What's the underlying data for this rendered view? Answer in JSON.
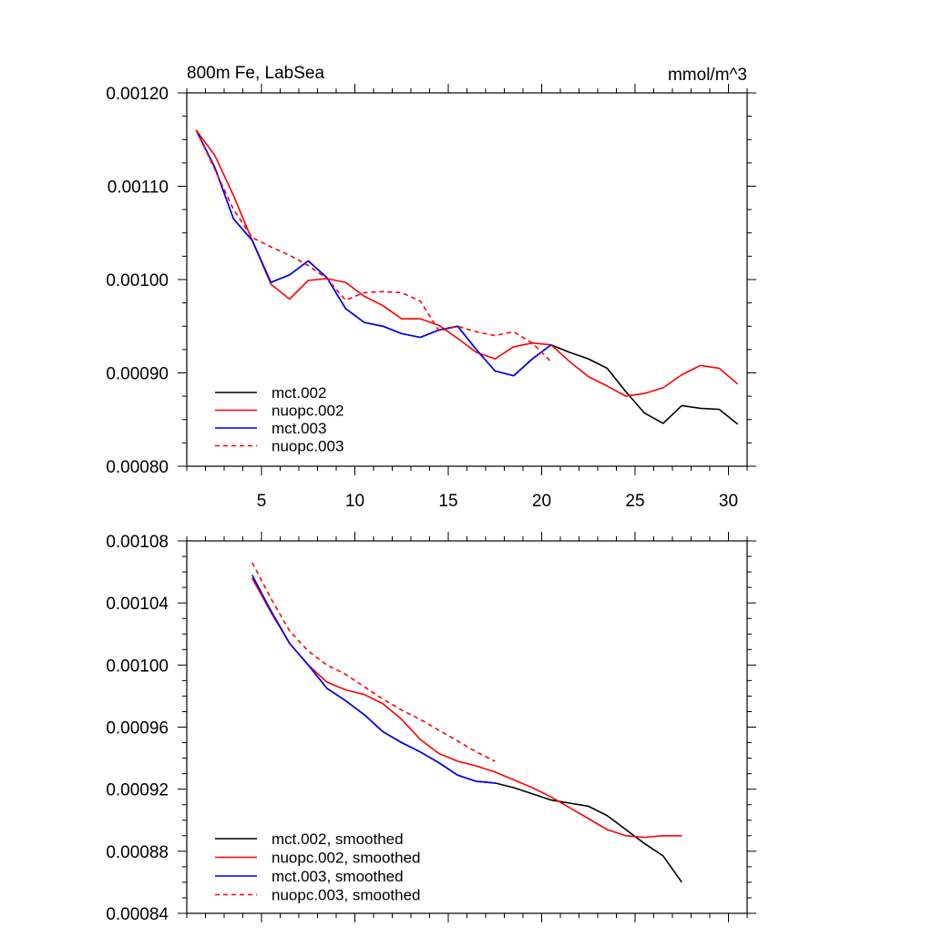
{
  "chart_data": [
    {
      "type": "line",
      "title": "800m Fe, LabSea",
      "units": "mmol/m^3",
      "xlabel": "",
      "ylabel": "",
      "xlim": [
        1,
        31
      ],
      "ylim": [
        0.0008,
        0.0012
      ],
      "xticks": [
        5,
        10,
        15,
        20,
        25,
        30
      ],
      "xtick_labels": [
        "5",
        "10",
        "15",
        "20",
        "25",
        "30"
      ],
      "yticks": [
        0.0008,
        0.0009,
        0.001,
        0.0011,
        0.0012
      ],
      "ytick_labels": [
        "0.00080",
        "0.00090",
        "0.00100",
        "0.00110",
        "0.00120"
      ],
      "legend_placement": "bottom-left",
      "series": [
        {
          "name": "mct.002",
          "color": "#000000",
          "dash": "solid",
          "x": [
            1.5,
            2.5,
            3.5,
            4.5,
            5.5,
            6.5,
            7.5,
            8.5,
            9.5,
            10.5,
            11.5,
            12.5,
            13.5,
            14.5,
            15.5,
            16.5,
            17.5,
            18.5,
            19.5,
            20.5,
            21.5,
            22.5,
            23.5,
            24.5,
            25.5,
            26.5,
            27.5,
            28.5,
            29.5,
            30.5
          ],
          "y": [
            0.00116,
            0.00112,
            0.001065,
            0.001042,
            0.000997,
            0.001005,
            0.00102,
            0.001002,
            0.000969,
            0.000954,
            0.00095,
            0.000942,
            0.000938,
            0.000946,
            0.00095,
            0.000925,
            0.000902,
            0.000897,
            0.000915,
            0.00093,
            0.000922,
            0.000915,
            0.000905,
            0.00088,
            0.000857,
            0.000846,
            0.000865,
            0.000862,
            0.000861,
            0.000845
          ]
        },
        {
          "name": "nuopc.002",
          "color": "#ff0000",
          "dash": "solid",
          "x": [
            1.5,
            2.5,
            3.5,
            4.5,
            5.5,
            6.5,
            7.5,
            8.5,
            9.5,
            10.5,
            11.5,
            12.5,
            13.5,
            14.5,
            15.5,
            16.5,
            17.5,
            18.5,
            19.5,
            20.5,
            21.5,
            22.5,
            23.5,
            24.5,
            25.5,
            26.5,
            27.5,
            28.5,
            29.5,
            30.5
          ],
          "y": [
            0.00116,
            0.001133,
            0.00109,
            0.001042,
            0.000995,
            0.000979,
            0.000999,
            0.001001,
            0.000997,
            0.000982,
            0.000972,
            0.000958,
            0.000958,
            0.000951,
            0.000937,
            0.000922,
            0.000915,
            0.000928,
            0.000932,
            0.00093,
            0.000912,
            0.000896,
            0.000886,
            0.000875,
            0.000878,
            0.000884,
            0.000898,
            0.000908,
            0.000905,
            0.000888
          ]
        },
        {
          "name": "mct.003",
          "color": "#0000ff",
          "dash": "solid",
          "x": [
            1.5,
            2.5,
            3.5,
            4.5,
            5.5,
            6.5,
            7.5,
            8.5,
            9.5,
            10.5,
            11.5,
            12.5,
            13.5,
            14.5,
            15.5,
            16.5,
            17.5,
            18.5,
            19.5,
            20.5
          ],
          "y": [
            0.00116,
            0.00112,
            0.001065,
            0.001042,
            0.000997,
            0.001005,
            0.00102,
            0.001002,
            0.000969,
            0.000954,
            0.00095,
            0.000942,
            0.000938,
            0.000946,
            0.00095,
            0.000925,
            0.000902,
            0.000897,
            0.000915,
            0.00093
          ]
        },
        {
          "name": "nuopc.003",
          "color": "#ff0000",
          "dash": "dashed",
          "x": [
            1.5,
            2.5,
            3.5,
            4.5,
            5.5,
            6.5,
            7.5,
            8.5,
            9.5,
            10.5,
            11.5,
            12.5,
            13.5,
            14.5,
            15.5,
            16.5,
            17.5,
            18.5,
            19.5,
            20.5
          ],
          "y": [
            0.00116,
            0.001118,
            0.001075,
            0.001045,
            0.001035,
            0.001026,
            0.001015,
            0.001001,
            0.000978,
            0.000986,
            0.000987,
            0.000986,
            0.000977,
            0.000945,
            0.00095,
            0.000944,
            0.00094,
            0.000944,
            0.000932,
            0.000912
          ]
        }
      ]
    },
    {
      "type": "line",
      "title": "",
      "xlabel": "",
      "ylabel": "",
      "xlim": [
        1,
        31
      ],
      "ylim": [
        0.00084,
        0.00108
      ],
      "xticks": [
        5,
        10,
        15,
        20,
        25,
        30
      ],
      "xtick_labels": [],
      "yticks": [
        0.00084,
        0.00088,
        0.00092,
        0.00096,
        0.001,
        0.00104,
        0.00108
      ],
      "ytick_labels": [
        "0.00084",
        "0.00088",
        "0.00092",
        "0.00096",
        "0.00100",
        "0.00104",
        "0.00108"
      ],
      "legend_placement": "bottom-left",
      "series": [
        {
          "name": "mct.002, smoothed",
          "color": "#000000",
          "dash": "solid",
          "x": [
            4.5,
            5.5,
            6.5,
            7.5,
            8.5,
            9.5,
            10.5,
            11.5,
            12.5,
            13.5,
            14.5,
            15.5,
            16.5,
            17.5,
            18.5,
            19.5,
            20.5,
            21.5,
            22.5,
            23.5,
            24.5,
            25.5,
            26.5,
            27.5
          ],
          "y": [
            0.001056,
            0.001035,
            0.001014,
            0.001,
            0.000985,
            0.000977,
            0.000968,
            0.000957,
            0.00095,
            0.000944,
            0.000937,
            0.000929,
            0.000925,
            0.000924,
            0.000921,
            0.000917,
            0.000913,
            0.000911,
            0.000909,
            0.000903,
            0.000894,
            0.000885,
            0.000877,
            0.00086
          ]
        },
        {
          "name": "nuopc.002, smoothed",
          "color": "#ff0000",
          "dash": "solid",
          "x": [
            4.5,
            5.5,
            6.5,
            7.5,
            8.5,
            9.5,
            10.5,
            11.5,
            12.5,
            13.5,
            14.5,
            15.5,
            16.5,
            17.5,
            18.5,
            19.5,
            20.5,
            21.5,
            22.5,
            23.5,
            24.5,
            25.5,
            26.5,
            27.5
          ],
          "y": [
            0.001056,
            0.001034,
            0.001014,
            0.001,
            0.000989,
            0.000984,
            0.000981,
            0.000975,
            0.000965,
            0.000952,
            0.000943,
            0.000938,
            0.000935,
            0.000931,
            0.000926,
            0.000921,
            0.000915,
            0.000908,
            0.000901,
            0.000894,
            0.00089,
            0.000889,
            0.00089,
            0.00089
          ]
        },
        {
          "name": "mct.003, smoothed",
          "color": "#0000ff",
          "dash": "solid",
          "x": [
            4.5,
            5.5,
            6.5,
            7.5,
            8.5,
            9.5,
            10.5,
            11.5,
            12.5,
            13.5,
            14.5,
            15.5,
            16.5,
            17.5
          ],
          "y": [
            0.001058,
            0.001035,
            0.001014,
            0.001,
            0.000985,
            0.000977,
            0.000968,
            0.000957,
            0.00095,
            0.000944,
            0.000937,
            0.000929,
            0.000925,
            0.000924
          ]
        },
        {
          "name": "nuopc.003, smoothed",
          "color": "#ff0000",
          "dash": "dashed",
          "x": [
            4.5,
            5.5,
            6.5,
            7.5,
            8.5,
            9.5,
            10.5,
            11.5,
            12.5,
            13.5,
            14.5,
            15.5,
            16.5,
            17.5
          ],
          "y": [
            0.001066,
            0.001043,
            0.001022,
            0.001009,
            0.001,
            0.000994,
            0.000986,
            0.000978,
            0.000971,
            0.000965,
            0.000958,
            0.000951,
            0.000944,
            0.000938
          ]
        }
      ]
    }
  ]
}
